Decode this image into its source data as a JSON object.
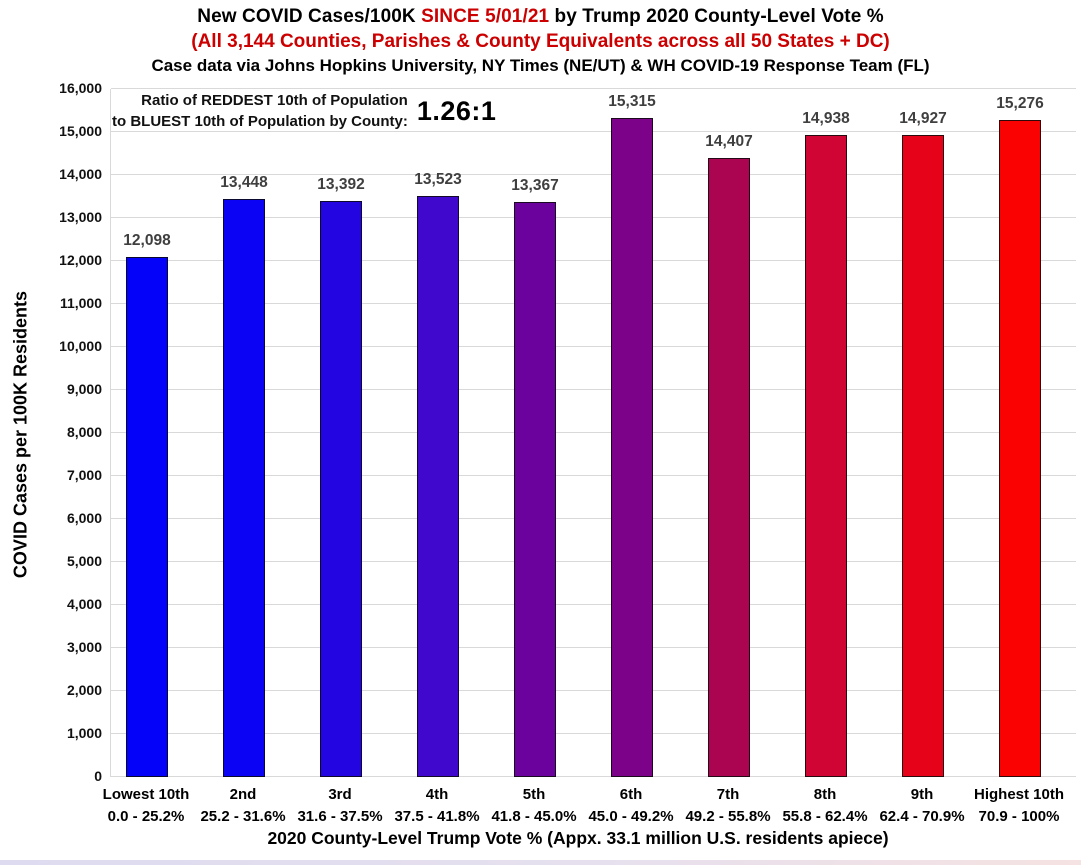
{
  "title": {
    "part1": "New COVID Cases/100K ",
    "highlight": "SINCE 5/01/21",
    "part2": " by Trump 2020 County-Level Vote %",
    "subtitle": "(All 3,144 Counties, Parishes & County Equivalents across all 50 States + DC)",
    "source_line": "Case data via Johns Hopkins University, NY Times (NE/UT) & WH COVID-19 Response Team (FL)"
  },
  "annotation": {
    "line1": "Ratio of REDDEST 10th of Population",
    "line2": "to BLUEST 10th of Population by County:",
    "ratio": "1.26:1"
  },
  "chart_data": {
    "type": "bar",
    "title": "New COVID Cases/100K SINCE 5/01/21 by Trump 2020 County-Level Vote %",
    "categories": [
      "Lowest 10th",
      "2nd",
      "3rd",
      "4th",
      "5th",
      "6th",
      "7th",
      "8th",
      "9th",
      "Highest 10th"
    ],
    "category_ranges": [
      "0.0 - 25.2%",
      "25.2 - 31.6%",
      "31.6 - 37.5%",
      "37.5 - 41.8%",
      "41.8 - 45.0%",
      "45.0 - 49.2%",
      "49.2 - 55.8%",
      "55.8 - 62.4%",
      "62.4 - 70.9%",
      "70.9 - 100%"
    ],
    "values": [
      12098,
      13448,
      13392,
      13523,
      13367,
      15315,
      14407,
      14938,
      14927,
      15276
    ],
    "value_labels": [
      "12,098",
      "13,448",
      "13,392",
      "13,523",
      "13,367",
      "15,315",
      "14,407",
      "14,938",
      "14,927",
      "15,276"
    ],
    "bar_colors": [
      "#0502fa",
      "#0b04f4",
      "#2305e2",
      "#3f08cc",
      "#6b029e",
      "#7c028a",
      "#ab0450",
      "#d00534",
      "#e6031a",
      "#fa0202"
    ],
    "xlabel": "2020 County-Level Trump Vote % (Appx. 33.1 million U.S. residents apiece)",
    "ylabel": "COVID Cases per 100K Residents",
    "ylim": [
      0,
      16000
    ],
    "ytick_step": 1000,
    "ytick_labels": [
      "0",
      "1,000",
      "2,000",
      "3,000",
      "4,000",
      "5,000",
      "6,000",
      "7,000",
      "8,000",
      "9,000",
      "10,000",
      "11,000",
      "12,000",
      "13,000",
      "14,000",
      "15,000",
      "16,000"
    ],
    "grid": true,
    "legend": "none"
  },
  "colors": {
    "title_red": "#cc0000",
    "value_label": "#3f3f3f",
    "gridline": "#d9d9d9",
    "axis_text": "#000000"
  }
}
